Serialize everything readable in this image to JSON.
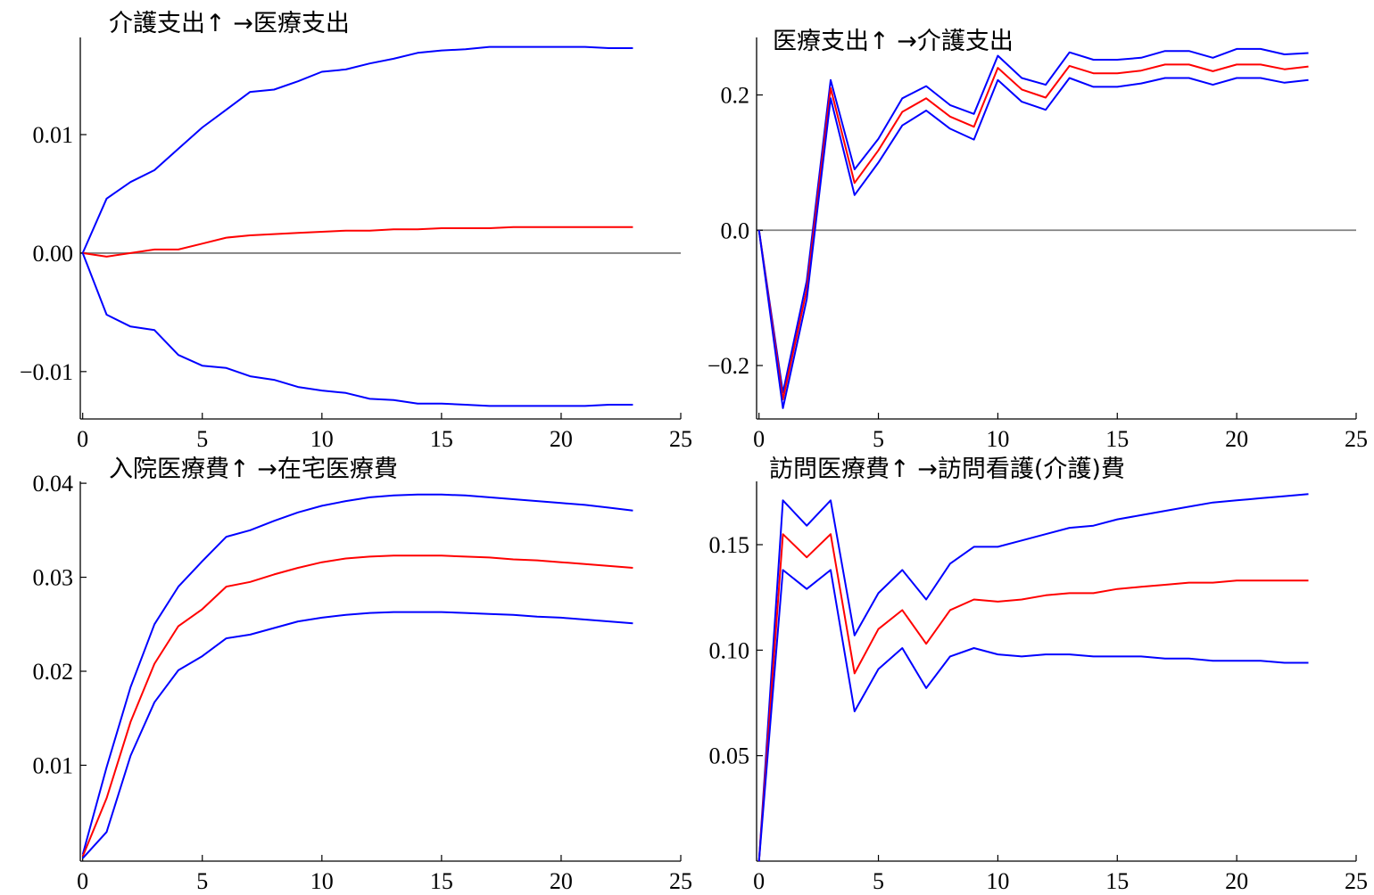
{
  "chart_data": [
    {
      "type": "line",
      "title": "介護支出↑ →医療支出",
      "xlim": [
        -0.1,
        25
      ],
      "ylim": [
        -0.014,
        0.0182
      ],
      "xticks": [
        0,
        5,
        10,
        15,
        20,
        25
      ],
      "xtick_labels": [
        "0",
        "5",
        "10",
        "15",
        "20",
        "25"
      ],
      "yticks": [
        0.01,
        0.0,
        -0.01
      ],
      "ytick_labels": [
        "0.01",
        "0.00",
        "−0.01"
      ],
      "zero_line": true,
      "x": [
        0,
        1,
        2,
        3,
        4,
        5,
        6,
        7,
        8,
        9,
        10,
        11,
        12,
        13,
        14,
        15,
        16,
        17,
        18,
        19,
        20,
        21,
        22,
        23
      ],
      "series": [
        {
          "color": "#0000ff",
          "values": [
            0,
            0.0046,
            0.006,
            0.007,
            0.0088,
            0.0106,
            0.0121,
            0.0136,
            0.0138,
            0.0145,
            0.0153,
            0.0155,
            0.016,
            0.0164,
            0.0169,
            0.0171,
            0.0172,
            0.0174,
            0.0174,
            0.0174,
            0.0174,
            0.0174,
            0.0173,
            0.0173
          ]
        },
        {
          "color": "#ff0000",
          "values": [
            0,
            -0.0003,
            0,
            0.0003,
            0.0003,
            0.0008,
            0.0013,
            0.0015,
            0.0016,
            0.0017,
            0.0018,
            0.0019,
            0.0019,
            0.002,
            0.002,
            0.0021,
            0.0021,
            0.0021,
            0.0022,
            0.0022,
            0.0022,
            0.0022,
            0.0022,
            0.0022
          ]
        },
        {
          "color": "#0000ff",
          "values": [
            0,
            -0.0052,
            -0.0062,
            -0.0065,
            -0.0086,
            -0.0095,
            -0.0097,
            -0.0104,
            -0.0107,
            -0.0113,
            -0.0116,
            -0.0118,
            -0.0123,
            -0.0124,
            -0.0127,
            -0.0127,
            -0.0128,
            -0.0129,
            -0.0129,
            -0.0129,
            -0.0129,
            -0.0129,
            -0.0128,
            -0.0128
          ]
        }
      ]
    },
    {
      "type": "line",
      "title": "医療支出↑ →介護支出",
      "xlim": [
        -0.1,
        25
      ],
      "ylim": [
        -0.279,
        0.285
      ],
      "xticks": [
        0,
        5,
        10,
        15,
        20,
        25
      ],
      "xtick_labels": [
        "0",
        "5",
        "10",
        "15",
        "20",
        "25"
      ],
      "yticks": [
        0.2,
        0.0,
        -0.2
      ],
      "ytick_labels": [
        "0.2",
        "0.0",
        "−0.2"
      ],
      "zero_line": true,
      "x": [
        0,
        1,
        2,
        3,
        4,
        5,
        6,
        7,
        8,
        9,
        10,
        11,
        12,
        13,
        14,
        15,
        16,
        17,
        18,
        19,
        20,
        21,
        22,
        23
      ],
      "series": [
        {
          "color": "#0000ff",
          "values": [
            0,
            -0.24,
            -0.075,
            0.222,
            0.09,
            0.135,
            0.195,
            0.213,
            0.185,
            0.172,
            0.258,
            0.225,
            0.215,
            0.263,
            0.252,
            0.252,
            0.255,
            0.265,
            0.265,
            0.255,
            0.268,
            0.268,
            0.26,
            0.262
          ]
        },
        {
          "color": "#ff0000",
          "values": [
            0,
            -0.25,
            -0.088,
            0.21,
            0.07,
            0.118,
            0.175,
            0.195,
            0.168,
            0.153,
            0.24,
            0.208,
            0.196,
            0.243,
            0.232,
            0.232,
            0.236,
            0.245,
            0.245,
            0.235,
            0.245,
            0.245,
            0.238,
            0.242
          ]
        },
        {
          "color": "#0000ff",
          "values": [
            0,
            -0.263,
            -0.102,
            0.195,
            0.052,
            0.1,
            0.155,
            0.177,
            0.15,
            0.134,
            0.222,
            0.19,
            0.178,
            0.225,
            0.212,
            0.212,
            0.217,
            0.225,
            0.225,
            0.215,
            0.225,
            0.225,
            0.218,
            0.222
          ]
        }
      ]
    },
    {
      "type": "line",
      "title": "入院医療費↑ →在宅医療費",
      "xlim": [
        -0.1,
        25
      ],
      "ylim": [
        -0.0002,
        0.0402
      ],
      "xticks": [
        0,
        5,
        10,
        15,
        20,
        25
      ],
      "xtick_labels": [
        "0",
        "5",
        "10",
        "15",
        "20",
        "25"
      ],
      "yticks": [
        0.04,
        0.03,
        0.02,
        0.01
      ],
      "ytick_labels": [
        "0.04",
        "0.03",
        "0.02",
        "0.01"
      ],
      "zero_line": false,
      "x": [
        0,
        1,
        2,
        3,
        4,
        5,
        6,
        7,
        8,
        9,
        10,
        11,
        12,
        13,
        14,
        15,
        16,
        17,
        18,
        19,
        20,
        21,
        22,
        23
      ],
      "series": [
        {
          "color": "#0000ff",
          "values": [
            0.0005,
            0.0098,
            0.0183,
            0.025,
            0.029,
            0.0317,
            0.0343,
            0.035,
            0.036,
            0.0369,
            0.0376,
            0.0381,
            0.0385,
            0.0387,
            0.0388,
            0.0388,
            0.0387,
            0.0385,
            0.0383,
            0.0381,
            0.0379,
            0.0377,
            0.0374,
            0.0371
          ]
        },
        {
          "color": "#ff0000",
          "values": [
            0.0003,
            0.0065,
            0.0146,
            0.0208,
            0.0248,
            0.0266,
            0.029,
            0.0295,
            0.0303,
            0.031,
            0.0316,
            0.032,
            0.0322,
            0.0323,
            0.0323,
            0.0323,
            0.0322,
            0.0321,
            0.0319,
            0.0318,
            0.0316,
            0.0314,
            0.0312,
            0.031
          ]
        },
        {
          "color": "#0000ff",
          "values": [
            0.0001,
            0.0029,
            0.011,
            0.0167,
            0.0201,
            0.0216,
            0.0235,
            0.0239,
            0.0246,
            0.0253,
            0.0257,
            0.026,
            0.0262,
            0.0263,
            0.0263,
            0.0263,
            0.0262,
            0.0261,
            0.026,
            0.0258,
            0.0257,
            0.0255,
            0.0253,
            0.0251
          ]
        }
      ]
    },
    {
      "type": "line",
      "title": "訪問医療費↑ →訪問看護(介護)費",
      "xlim": [
        -0.1,
        25
      ],
      "ylim": [
        0,
        0.18
      ],
      "xticks": [
        0,
        5,
        10,
        15,
        20,
        25
      ],
      "xtick_labels": [
        "0",
        "5",
        "10",
        "15",
        "20",
        "25"
      ],
      "yticks": [
        0.15,
        0.1,
        0.05
      ],
      "ytick_labels": [
        "0.15",
        "0.10",
        "0.05"
      ],
      "zero_line": false,
      "x": [
        0,
        1,
        2,
        3,
        4,
        5,
        6,
        7,
        8,
        9,
        10,
        11,
        12,
        13,
        14,
        15,
        16,
        17,
        18,
        19,
        20,
        21,
        22,
        23
      ],
      "series": [
        {
          "color": "#0000ff",
          "values": [
            0,
            0.171,
            0.159,
            0.171,
            0.107,
            0.127,
            0.138,
            0.124,
            0.141,
            0.149,
            0.149,
            0.152,
            0.155,
            0.158,
            0.159,
            0.162,
            0.164,
            0.166,
            0.168,
            0.17,
            0.171,
            0.172,
            0.173,
            0.174
          ]
        },
        {
          "color": "#ff0000",
          "values": [
            0,
            0.155,
            0.144,
            0.155,
            0.089,
            0.11,
            0.119,
            0.103,
            0.119,
            0.124,
            0.123,
            0.124,
            0.126,
            0.127,
            0.127,
            0.129,
            0.13,
            0.131,
            0.132,
            0.132,
            0.133,
            0.133,
            0.133,
            0.133
          ]
        },
        {
          "color": "#0000ff",
          "values": [
            0,
            0.138,
            0.129,
            0.138,
            0.071,
            0.091,
            0.101,
            0.082,
            0.097,
            0.101,
            0.098,
            0.097,
            0.098,
            0.098,
            0.097,
            0.097,
            0.097,
            0.096,
            0.096,
            0.095,
            0.095,
            0.095,
            0.094,
            0.094
          ]
        }
      ]
    }
  ]
}
